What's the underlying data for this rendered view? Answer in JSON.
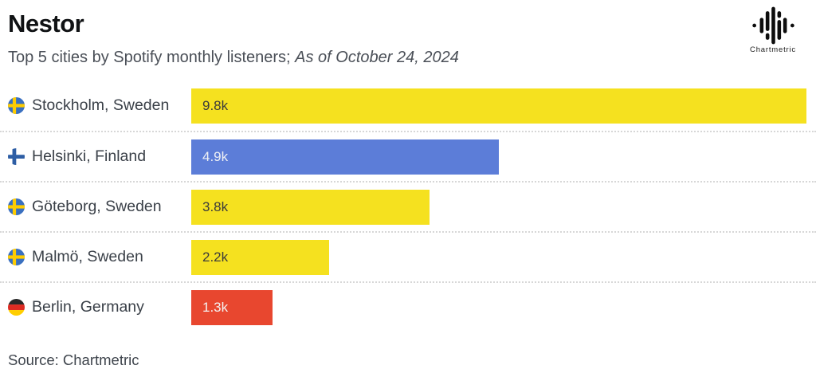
{
  "header": {
    "title": "Nestor",
    "subtitle_plain": "Top 5 cities by Spotify monthly listeners; ",
    "subtitle_italic": "As of October 24, 2024",
    "logo_text": "Chartmetric",
    "logo_icon": "chartmetric-waveform-icon"
  },
  "chart_data": {
    "type": "bar",
    "orientation": "horizontal",
    "title": "Nestor",
    "subtitle": "Top 5 cities by Spotify monthly listeners; As of October 24, 2024",
    "categories": [
      "Stockholm, Sweden",
      "Helsinki, Finland",
      "Göteborg, Sweden",
      "Malmö, Sweden",
      "Berlin, Germany"
    ],
    "values": [
      9800,
      4900,
      3800,
      2200,
      1300
    ],
    "value_labels": [
      "9.8k",
      "4.9k",
      "3.8k",
      "2.2k",
      "1.3k"
    ],
    "bar_colors": [
      "#f5e11f",
      "#5c7dd8",
      "#f5e11f",
      "#f5e11f",
      "#e8472f"
    ],
    "value_text_colors": [
      "#3b3b3b",
      "#eef0f4",
      "#3b3b3b",
      "#3b3b3b",
      "#f4f2f1"
    ],
    "flag_icons": [
      "sweden-flag-icon",
      "finland-flag-icon",
      "sweden-flag-icon",
      "sweden-flag-icon",
      "germany-flag-icon"
    ],
    "xlim": [
      0,
      9800
    ],
    "grid": false,
    "legend": false,
    "value_label_position": "inside-left"
  },
  "footer": {
    "source": "Source: Chartmetric"
  },
  "colors": {
    "background": "#ffffff",
    "yellow": "#f5e11f",
    "blue": "#5c7dd8",
    "red": "#e8472f",
    "title_text": "#101214",
    "subtitle_text": "#4a4f57",
    "label_text": "#3a4048",
    "separator": "#d7d7d7"
  }
}
